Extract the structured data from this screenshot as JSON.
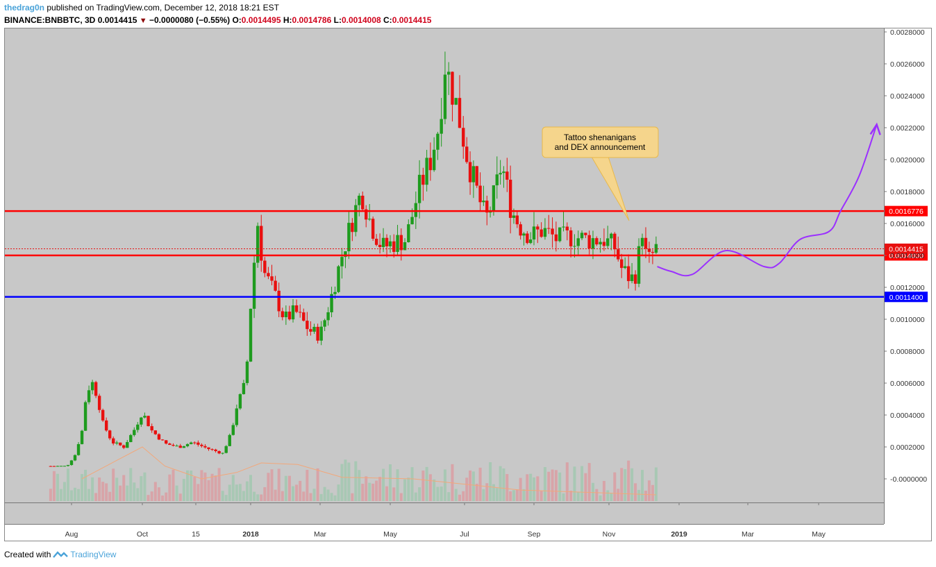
{
  "header": {
    "author": "thedrag0n",
    "published": "published on TradingView.com, December 12, 2018 18:21 EST",
    "symbol": "BINANCE:BNBBTC, 3D",
    "last": "0.0014415",
    "change_arrow": "▼",
    "change": "−0.0000080 (−0.55%)",
    "o_label": "O:",
    "o_value": "0.0014495",
    "h_label": "H:",
    "h_value": "0.0014786",
    "l_label": "L:",
    "l_value": "0.0014008",
    "c_label": "C:",
    "c_value": "0.0014415"
  },
  "footer": {
    "created_with": "Created with",
    "brand": "TradingView",
    "logo_icon": "tradingview-logo-icon"
  },
  "colors": {
    "background": "#c8c8c8",
    "up": "#1e9b1e",
    "down": "#e8100f",
    "vol_up": "#a8c8b4",
    "vol_down": "#d8a4a8",
    "ma": "#f2a77a",
    "resistance": "#ff0000",
    "support": "#0000ff",
    "projection": "#9b30ff",
    "note_bg": "#f5d58c"
  },
  "annotation": {
    "line1": "Tattoo shenanigans",
    "line2": "and DEX announcement"
  },
  "chart_data": {
    "type": "candlestick",
    "symbol": "BINANCE:BNBBTC",
    "interval": "3D",
    "y_axis": {
      "min": -0.0001,
      "max": 0.0028,
      "ticks": [
        "0.0028000",
        "0.0026000",
        "0.0024000",
        "0.0022000",
        "0.0020000",
        "0.0018000",
        "0.0016000",
        "0.0014000",
        "0.0012000",
        "0.0010000",
        "0.0008000",
        "0.0006000",
        "0.0004000",
        "0.0002000",
        "-0.0000000"
      ]
    },
    "x_axis": {
      "ticks": [
        "Aug",
        "Oct",
        "15",
        "2018",
        "Mar",
        "May",
        "Jul",
        "Sep",
        "Nov",
        "2019",
        "Mar",
        "May"
      ]
    },
    "horizontal_lines": [
      {
        "value": 0.0016776,
        "label": "0.0016776",
        "color": "#ff0000"
      },
      {
        "value": 0.0014,
        "label": "0.0014000",
        "color": "#ff0000"
      },
      {
        "value": 0.00114,
        "label": "0.0011400",
        "color": "#0000ff"
      }
    ],
    "last_price": {
      "value": 0.0014415,
      "label": "0.0014415"
    },
    "price_path": [
      [
        "2017-07-14",
        8e-05
      ],
      [
        "2017-07-28",
        8e-05
      ],
      [
        "2017-08-04",
        0.00015
      ],
      [
        "2017-08-10",
        0.0003
      ],
      [
        "2017-08-14",
        0.00055
      ],
      [
        "2017-08-19",
        0.0006
      ],
      [
        "2017-08-23",
        0.00052
      ],
      [
        "2017-08-28",
        0.00035
      ],
      [
        "2017-09-05",
        0.00023
      ],
      [
        "2017-09-15",
        0.0002
      ],
      [
        "2017-09-25",
        0.00032
      ],
      [
        "2017-10-01",
        0.00042
      ],
      [
        "2017-10-08",
        0.00031
      ],
      [
        "2017-10-20",
        0.00022
      ],
      [
        "2017-11-01",
        0.0002
      ],
      [
        "2017-11-12",
        0.00023
      ],
      [
        "2017-11-25",
        0.00019
      ],
      [
        "2017-12-08",
        0.00016
      ],
      [
        "2017-12-15",
        0.00028
      ],
      [
        "2017-12-20",
        0.00045
      ],
      [
        "2017-12-28",
        0.00062
      ],
      [
        "2018-01-02",
        0.0012
      ],
      [
        "2018-01-07",
        0.0016
      ],
      [
        "2018-01-12",
        0.0013
      ],
      [
        "2018-01-20",
        0.00118
      ],
      [
        "2018-01-30",
        0.001
      ],
      [
        "2018-02-08",
        0.00105
      ],
      [
        "2018-02-20",
        0.00093
      ],
      [
        "2018-03-01",
        0.0009
      ],
      [
        "2018-03-10",
        0.00112
      ],
      [
        "2018-03-20",
        0.0014
      ],
      [
        "2018-03-30",
        0.00165
      ],
      [
        "2018-04-06",
        0.0018
      ],
      [
        "2018-04-14",
        0.0016
      ],
      [
        "2018-04-24",
        0.00145
      ],
      [
        "2018-05-04",
        0.00148
      ],
      [
        "2018-05-14",
        0.0015
      ],
      [
        "2018-05-24",
        0.0018
      ],
      [
        "2018-06-03",
        0.002
      ],
      [
        "2018-06-10",
        0.00222
      ],
      [
        "2018-06-15",
        0.0026
      ],
      [
        "2018-06-24",
        0.00235
      ],
      [
        "2018-07-04",
        0.002
      ],
      [
        "2018-07-12",
        0.0018
      ],
      [
        "2018-07-20",
        0.00162
      ],
      [
        "2018-07-28",
        0.00178
      ],
      [
        "2018-08-03",
        0.00198
      ],
      [
        "2018-08-12",
        0.00168
      ],
      [
        "2018-08-20",
        0.00158
      ],
      [
        "2018-08-30",
        0.00152
      ],
      [
        "2018-09-08",
        0.00156
      ],
      [
        "2018-09-20",
        0.0015
      ],
      [
        "2018-10-02",
        0.00152
      ],
      [
        "2018-10-14",
        0.0015
      ],
      [
        "2018-10-28",
        0.0015
      ],
      [
        "2018-11-06",
        0.00145
      ],
      [
        "2018-11-12",
        0.00132
      ],
      [
        "2018-11-20",
        0.00125
      ],
      [
        "2018-11-26",
        0.0013
      ],
      [
        "2018-11-29",
        0.00162
      ],
      [
        "2018-12-04",
        0.00135
      ],
      [
        "2018-12-12",
        0.0014415
      ]
    ],
    "volume_ma_path": [
      [
        "2017-08-10",
        0.0
      ],
      [
        "2017-09-10",
        0.00012
      ],
      [
        "2017-10-01",
        0.0002
      ],
      [
        "2017-10-20",
        8e-05
      ],
      [
        "2017-11-20",
        0.0
      ],
      [
        "2017-12-20",
        4e-05
      ],
      [
        "2018-01-10",
        0.0001
      ],
      [
        "2018-02-10",
        9e-05
      ],
      [
        "2018-03-20",
        1e-05
      ],
      [
        "2018-05-20",
        0.0
      ],
      [
        "2018-08-20",
        -7e-05
      ],
      [
        "2018-12-12",
        -0.0001
      ]
    ],
    "projection_path": [
      [
        "2018-12-13",
        0.00133
      ],
      [
        "2018-12-25",
        0.0013
      ],
      [
        "2019-01-12",
        0.00128
      ],
      [
        "2019-02-10",
        0.00143
      ],
      [
        "2019-03-15",
        0.00133
      ],
      [
        "2019-03-28",
        0.00135
      ],
      [
        "2019-04-15",
        0.0015
      ],
      [
        "2019-05-10",
        0.00155
      ],
      [
        "2019-05-20",
        0.00168
      ],
      [
        "2019-06-05",
        0.0019
      ],
      [
        "2019-06-20",
        0.00222
      ]
    ]
  }
}
